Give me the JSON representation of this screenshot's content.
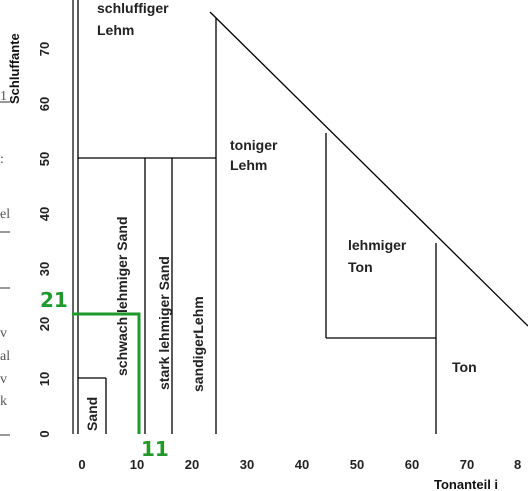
{
  "regions": {
    "schluffiger_lehm_line1": "schluffiger",
    "schluffiger_lehm_line2": "Lehm",
    "toniger_lehm_line1": "toniger",
    "toniger_lehm_line2": "Lehm",
    "lehmiger_ton_line1": "lehmiger",
    "lehmiger_ton_line2": "Ton",
    "ton": "Ton",
    "sand": "Sand",
    "schwach_lehmiger_sand": "schwach lehmiger Sand",
    "stark_lehmiger_sand": "stark lehmiger Sand",
    "sandiger_lehm": "sandigerLehm"
  },
  "axes": {
    "y_label": "Schluffante",
    "x_label": "Tonanteil i",
    "y_ticks": [
      "0",
      "10",
      "20",
      "30",
      "40",
      "50",
      "60",
      "70"
    ],
    "x_ticks": [
      "0",
      "10",
      "20",
      "30",
      "40",
      "50",
      "60",
      "70",
      "8"
    ]
  },
  "marker": {
    "y_value": "21",
    "x_value": "11",
    "color": "#1e9a2c"
  },
  "left_fragments": {
    "f1": "1",
    "f2": ":",
    "f3": "el",
    "f4": "v",
    "f5": "al",
    "f6": "v",
    "f7": "k"
  }
}
